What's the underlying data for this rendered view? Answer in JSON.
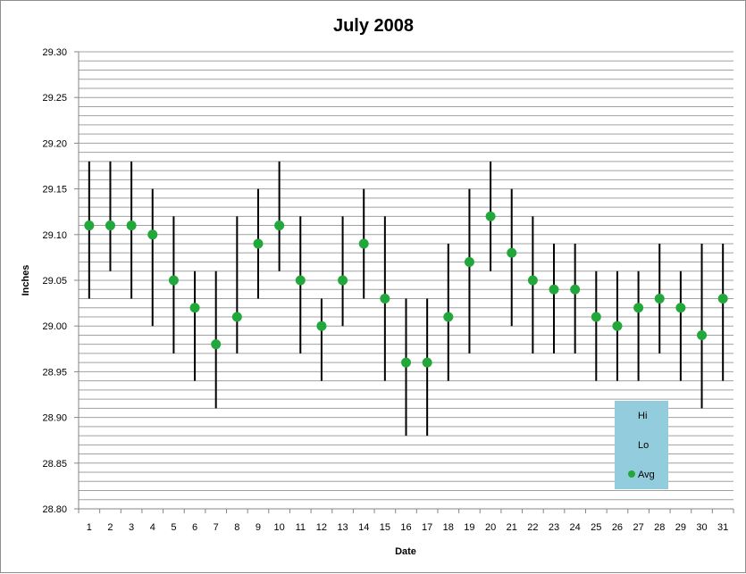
{
  "chart_data": {
    "type": "scatter",
    "title": "July 2008",
    "xlabel": "Date",
    "ylabel": "Inches",
    "ylim": [
      28.8,
      29.3
    ],
    "y_major_ticks": [
      "28.80",
      "28.85",
      "28.90",
      "28.95",
      "29.00",
      "29.05",
      "29.10",
      "29.15",
      "29.20",
      "29.25",
      "29.30"
    ],
    "grid": true,
    "x": [
      1,
      2,
      3,
      4,
      5,
      6,
      7,
      8,
      9,
      10,
      11,
      12,
      13,
      14,
      15,
      16,
      17,
      18,
      19,
      20,
      21,
      22,
      23,
      24,
      25,
      26,
      27,
      28,
      29,
      30,
      31
    ],
    "series": [
      {
        "name": "Hi",
        "values": [
          29.18,
          29.18,
          29.18,
          29.15,
          29.12,
          29.06,
          29.06,
          29.12,
          29.15,
          29.18,
          29.12,
          29.03,
          29.12,
          29.15,
          29.12,
          29.03,
          29.03,
          29.09,
          29.15,
          29.18,
          29.15,
          29.12,
          29.09,
          29.09,
          29.06,
          29.06,
          29.06,
          29.09,
          29.06,
          29.09,
          29.09
        ]
      },
      {
        "name": "Lo",
        "values": [
          29.03,
          29.06,
          29.03,
          29.0,
          28.97,
          28.94,
          28.91,
          28.97,
          29.03,
          29.06,
          28.97,
          28.94,
          29.0,
          29.03,
          28.94,
          28.88,
          28.88,
          28.94,
          28.97,
          29.06,
          29.0,
          28.97,
          28.97,
          28.97,
          28.94,
          28.94,
          28.94,
          28.97,
          28.94,
          28.91,
          28.94
        ]
      },
      {
        "name": "Avg",
        "values": [
          29.11,
          29.11,
          29.11,
          29.1,
          29.05,
          29.02,
          28.98,
          29.01,
          29.09,
          29.11,
          29.05,
          29.0,
          29.05,
          29.09,
          29.03,
          28.96,
          28.96,
          29.01,
          29.07,
          29.12,
          29.08,
          29.05,
          29.04,
          29.04,
          29.01,
          29.0,
          29.02,
          29.03,
          29.02,
          28.99,
          29.03
        ]
      }
    ],
    "legend_position": "bottom-right",
    "colors": {
      "avg_marker": "#22a83a",
      "range_line": "#000000",
      "gridline": "#a0a0a0",
      "legend_bg": "#93cddd",
      "axis": "#868686"
    }
  }
}
